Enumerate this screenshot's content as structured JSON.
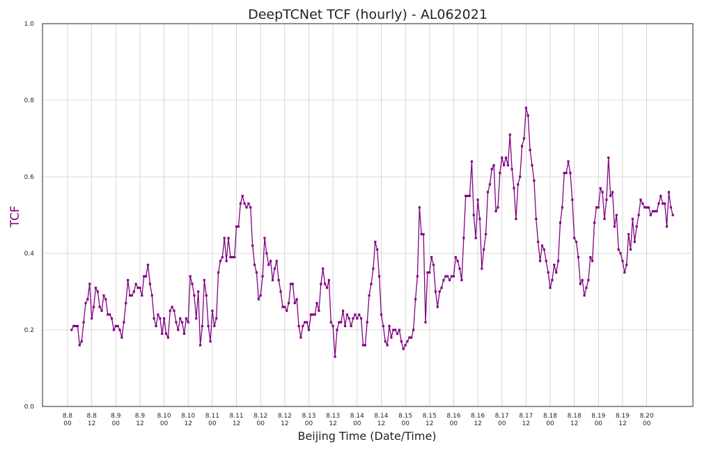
{
  "chart_data": {
    "type": "line",
    "title": "DeepTCNet TCF (hourly) - AL062021",
    "xlabel": "Beijing Time (Date/Time)",
    "ylabel": "TCF",
    "ylim": [
      0,
      1
    ],
    "yticks": [
      0.0,
      0.2,
      0.4,
      0.6,
      0.8,
      1.0
    ],
    "ytick_labels": [
      "0.0",
      "0.2",
      "0.4",
      "0.6",
      "0.8",
      "1.0"
    ],
    "xticks": [
      {
        "date": "8.8",
        "time": "00"
      },
      {
        "date": "8.8",
        "time": "12"
      },
      {
        "date": "8.9",
        "time": "00"
      },
      {
        "date": "8.9",
        "time": "12"
      },
      {
        "date": "8.10",
        "time": "00"
      },
      {
        "date": "8.10",
        "time": "12"
      },
      {
        "date": "8.11",
        "time": "00"
      },
      {
        "date": "8.11",
        "time": "12"
      },
      {
        "date": "8.12",
        "time": "00"
      },
      {
        "date": "8.12",
        "time": "12"
      },
      {
        "date": "8.13",
        "time": "00"
      },
      {
        "date": "8.13",
        "time": "12"
      },
      {
        "date": "8.14",
        "time": "00"
      },
      {
        "date": "8.14",
        "time": "12"
      },
      {
        "date": "8.15",
        "time": "00"
      },
      {
        "date": "8.15",
        "time": "12"
      },
      {
        "date": "8.16",
        "time": "00"
      },
      {
        "date": "8.16",
        "time": "12"
      },
      {
        "date": "8.17",
        "time": "00"
      },
      {
        "date": "8.17",
        "time": "12"
      },
      {
        "date": "8.18",
        "time": "00"
      },
      {
        "date": "8.18",
        "time": "12"
      },
      {
        "date": "8.19",
        "time": "00"
      },
      {
        "date": "8.19",
        "time": "12"
      },
      {
        "date": "8.20",
        "time": "00"
      }
    ],
    "grid": true,
    "line_color": "#800080",
    "label_color": "#800080",
    "series": [
      {
        "x_start": "8.8 02",
        "x_step": "1 hour",
        "values": [
          0.2,
          0.21,
          0.21,
          0.21,
          0.16,
          0.17,
          0.22,
          0.27,
          0.28,
          0.32,
          0.23,
          0.26,
          0.31,
          0.3,
          0.26,
          0.25,
          0.29,
          0.28,
          0.24,
          0.24,
          0.23,
          0.2,
          0.21,
          0.21,
          0.2,
          0.18,
          0.22,
          0.27,
          0.33,
          0.29,
          0.29,
          0.3,
          0.32,
          0.31,
          0.31,
          0.29,
          0.34,
          0.34,
          0.37,
          0.32,
          0.29,
          0.23,
          0.21,
          0.24,
          0.23,
          0.19,
          0.23,
          0.19,
          0.18,
          0.25,
          0.26,
          0.25,
          0.22,
          0.2,
          0.23,
          0.22,
          0.19,
          0.23,
          0.22,
          0.34,
          0.32,
          0.29,
          0.23,
          0.3,
          0.16,
          0.21,
          0.33,
          0.29,
          0.21,
          0.17,
          0.25,
          0.21,
          0.23,
          0.35,
          0.38,
          0.39,
          0.44,
          0.38,
          0.44,
          0.39,
          0.39,
          0.39,
          0.47,
          0.47,
          0.53,
          0.55,
          0.53,
          0.52,
          0.53,
          0.52,
          0.42,
          0.37,
          0.35,
          0.28,
          0.29,
          0.34,
          0.44,
          0.4,
          0.37,
          0.38,
          0.33,
          0.36,
          0.38,
          0.33,
          0.3,
          0.26,
          0.26,
          0.25,
          0.27,
          0.32,
          0.32,
          0.27,
          0.28,
          0.21,
          0.18,
          0.21,
          0.22,
          0.22,
          0.2,
          0.24,
          0.24,
          0.24,
          0.27,
          0.25,
          0.32,
          0.36,
          0.32,
          0.31,
          0.33,
          0.22,
          0.21,
          0.13,
          0.2,
          0.22,
          0.22,
          0.25,
          0.21,
          0.24,
          0.23,
          0.21,
          0.23,
          0.24,
          0.23,
          0.24,
          0.23,
          0.16,
          0.16,
          0.22,
          0.29,
          0.32,
          0.36,
          0.43,
          0.41,
          0.34,
          0.24,
          0.21,
          0.17,
          0.16,
          0.21,
          0.18,
          0.2,
          0.2,
          0.19,
          0.2,
          0.17,
          0.15,
          0.16,
          0.17,
          0.18,
          0.18,
          0.2,
          0.28,
          0.34,
          0.52,
          0.45,
          0.45,
          0.22,
          0.35,
          0.35,
          0.39,
          0.37,
          0.3,
          0.26,
          0.3,
          0.31,
          0.33,
          0.34,
          0.34,
          0.33,
          0.34,
          0.34,
          0.39,
          0.38,
          0.36,
          0.33,
          0.44,
          0.55,
          0.55,
          0.55,
          0.64,
          0.5,
          0.44,
          0.54,
          0.49,
          0.36,
          0.41,
          0.45,
          0.56,
          0.58,
          0.62,
          0.63,
          0.51,
          0.52,
          0.61,
          0.65,
          0.63,
          0.65,
          0.63,
          0.71,
          0.62,
          0.57,
          0.49,
          0.58,
          0.6,
          0.68,
          0.7,
          0.78,
          0.76,
          0.67,
          0.63,
          0.59,
          0.49,
          0.43,
          0.38,
          0.42,
          0.41,
          0.38,
          0.35,
          0.31,
          0.33,
          0.37,
          0.35,
          0.38,
          0.48,
          0.52,
          0.61,
          0.61,
          0.64,
          0.61,
          0.54,
          0.44,
          0.43,
          0.39,
          0.32,
          0.33,
          0.29,
          0.31,
          0.33,
          0.39,
          0.38,
          0.48,
          0.52,
          0.52,
          0.57,
          0.56,
          0.49,
          0.54,
          0.65,
          0.55,
          0.56,
          0.47,
          0.5,
          0.41,
          0.4,
          0.38,
          0.35,
          0.37,
          0.45,
          0.41,
          0.49,
          0.43,
          0.47,
          0.5,
          0.54,
          0.53,
          0.52,
          0.52,
          0.52,
          0.5,
          0.51,
          0.51,
          0.51,
          0.53,
          0.55,
          0.53,
          0.53,
          0.47,
          0.56,
          0.52,
          0.5
        ]
      }
    ]
  }
}
